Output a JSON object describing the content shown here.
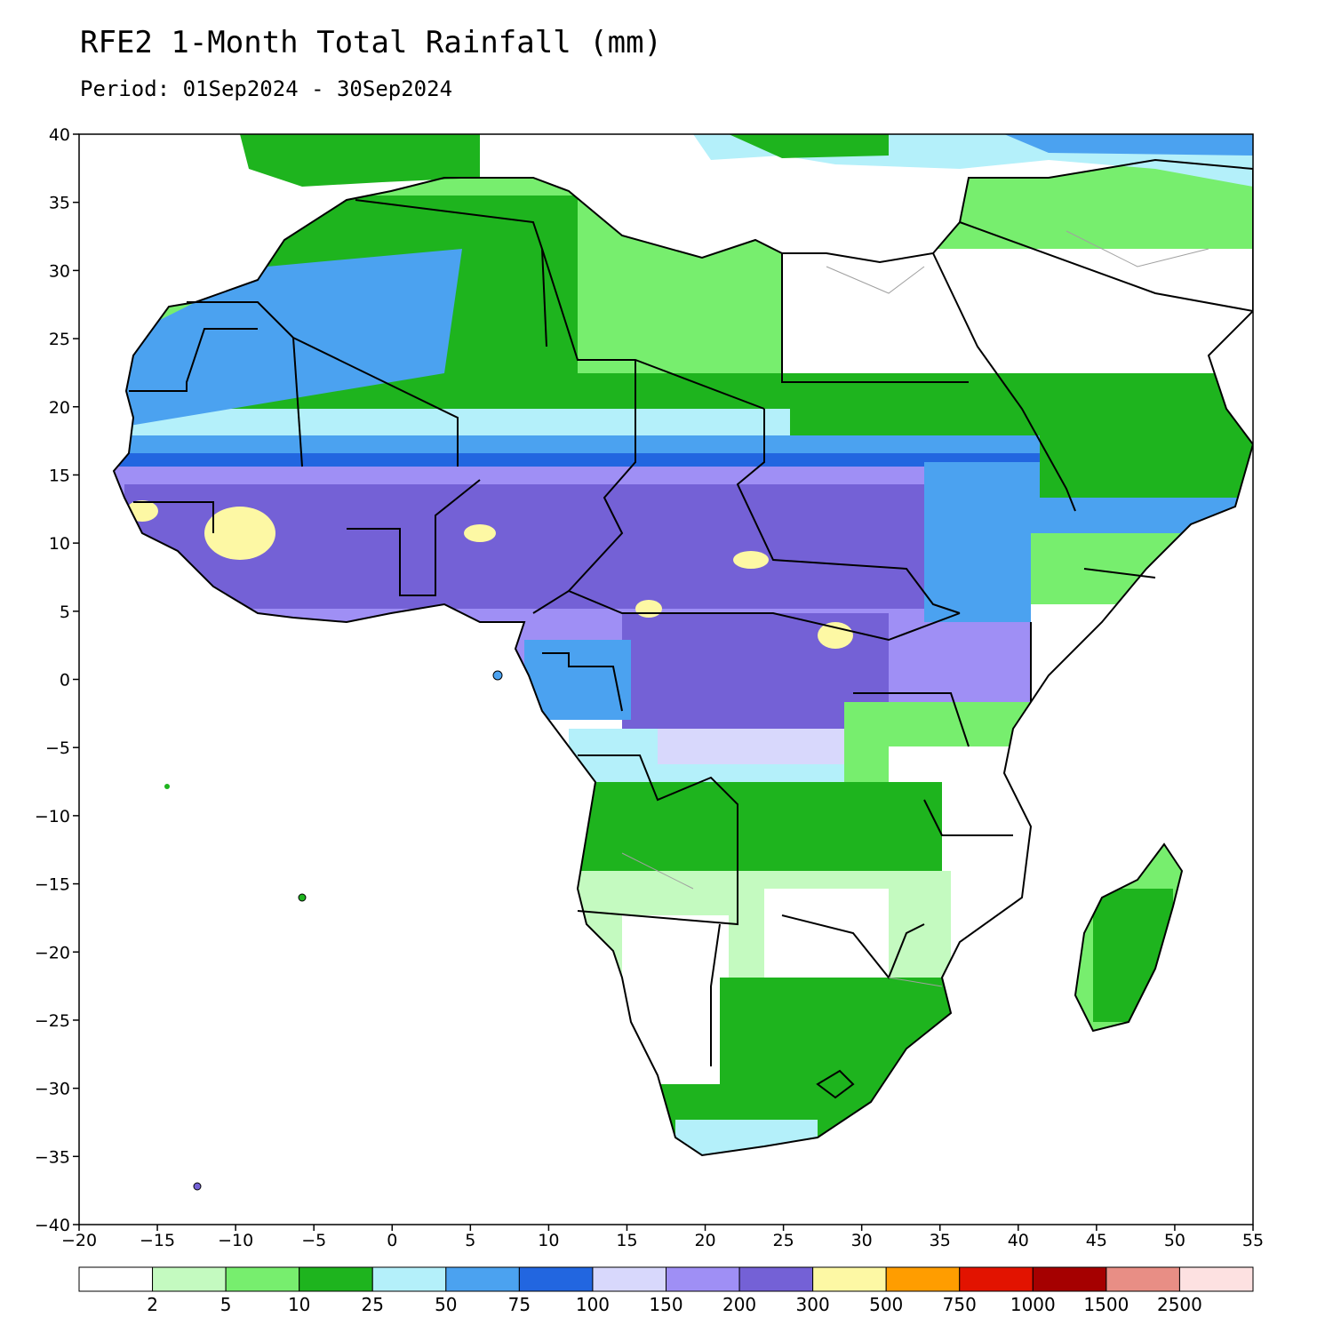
{
  "title": "RFE2 1-Month Total Rainfall (mm)",
  "subtitle": "Period: 01Sep2024 - 30Sep2024",
  "axes": {
    "x_ticks": [
      "−20",
      "−15",
      "−10",
      "−5",
      "0",
      "5",
      "10",
      "15",
      "20",
      "25",
      "30",
      "35",
      "40",
      "45",
      "50",
      "55"
    ],
    "y_ticks": [
      "40",
      "35",
      "30",
      "25",
      "20",
      "15",
      "10",
      "5",
      "0",
      "−5",
      "−10",
      "−15",
      "−20",
      "−25",
      "−30",
      "−35",
      "−40"
    ],
    "x_range": [
      -20,
      55
    ],
    "y_range": [
      -40,
      40
    ]
  },
  "colorbar": {
    "colors": [
      "#ffffff",
      "#c4fac0",
      "#77ee6e",
      "#1eb41e",
      "#b4f0fa",
      "#4ba2f0",
      "#2266e0",
      "#d8d8fc",
      "#9f8ff5",
      "#7461d6",
      "#fdf8a4",
      "#ff9d00",
      "#e21300",
      "#a50000",
      "#e88e85",
      "#fde1e1"
    ],
    "labels": [
      "2",
      "5",
      "10",
      "25",
      "50",
      "75",
      "100",
      "150",
      "200",
      "300",
      "500",
      "750",
      "1000",
      "1500",
      "2500"
    ]
  },
  "legend_colors": {
    "land_outline": "#000000",
    "country_borders": "#000000",
    "admin_borders": "#a0a0a0"
  }
}
